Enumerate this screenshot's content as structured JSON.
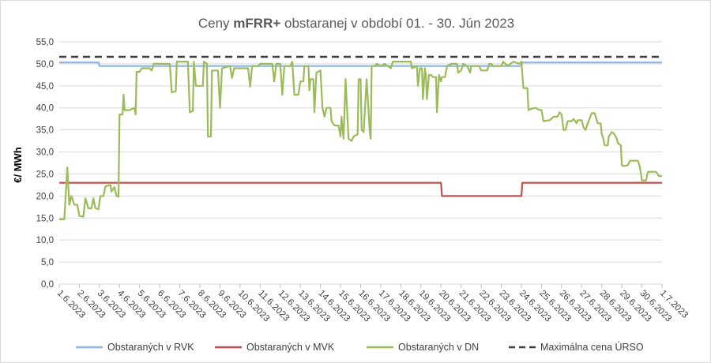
{
  "chart_data": {
    "type": "line",
    "title_parts": [
      "Ceny ",
      "mFRR+",
      " obstaranej v období 01. - 30. Jún 2023"
    ],
    "xlabel": "",
    "ylabel": "€/ MWh",
    "ylim": [
      0,
      55
    ],
    "yticks": [
      "0,0",
      "5,0",
      "10,0",
      "15,0",
      "20,0",
      "25,0",
      "30,0",
      "35,0",
      "40,0",
      "45,0",
      "50,0",
      "55,0"
    ],
    "x_categories": [
      "1.6.2023",
      "2.6.2023",
      "3.6.2023",
      "4.6.2023",
      "5.6.2023",
      "6.6.2023",
      "7.6.2023",
      "8.6.2023",
      "9.6.2023",
      "10.6.2023",
      "11.6.2023",
      "12.6.2023",
      "13.6.2023",
      "14.6.2023",
      "15.6.2023",
      "16.6.2023",
      "17.6.2023",
      "18.6.2023",
      "19.6.2023",
      "20.6.2023",
      "21.6.2023",
      "22.6.2023",
      "23.6.2023",
      "24.6.2023",
      "25.6.2023",
      "26.6.2023",
      "27.6.2023",
      "28.6.2023",
      "29.6.2023",
      "30.6.2023",
      "1.7.2023"
    ],
    "grid": "horizontal",
    "legend_position": "bottom",
    "series": [
      {
        "name": "Obstaraných v RVK",
        "color": "#8eb4e3",
        "points": [
          [
            0,
            50.3
          ],
          [
            1.95,
            50.3
          ],
          [
            2.0,
            49.5
          ],
          [
            23.0,
            49.5
          ],
          [
            23.05,
            50.3
          ],
          [
            30,
            50.3
          ]
        ]
      },
      {
        "name": "Obstaraných v MVK",
        "color": "#c0504d",
        "points": [
          [
            0,
            23.0
          ],
          [
            19.0,
            23.0
          ],
          [
            19.05,
            20.0
          ],
          [
            23.0,
            20.0
          ],
          [
            23.05,
            23.0
          ],
          [
            30,
            23.0
          ]
        ]
      },
      {
        "name": "Obstaraných v DN",
        "color": "#9bbb59",
        "points": [
          [
            0,
            14.7
          ],
          [
            0.25,
            14.7
          ],
          [
            0.3,
            18.5
          ],
          [
            0.4,
            26.5
          ],
          [
            0.5,
            18.0
          ],
          [
            0.6,
            20.0
          ],
          [
            0.75,
            18.0
          ],
          [
            0.9,
            18.0
          ],
          [
            1.0,
            15.5
          ],
          [
            1.2,
            15.3
          ],
          [
            1.3,
            19.5
          ],
          [
            1.45,
            17.2
          ],
          [
            1.6,
            17.2
          ],
          [
            1.7,
            19.5
          ],
          [
            1.8,
            17.2
          ],
          [
            1.95,
            17.0
          ],
          [
            2.05,
            20.0
          ],
          [
            2.2,
            20.0
          ],
          [
            2.3,
            22.2
          ],
          [
            2.55,
            22.5
          ],
          [
            2.6,
            21.0
          ],
          [
            2.75,
            22.0
          ],
          [
            2.85,
            20.0
          ],
          [
            2.95,
            19.8
          ],
          [
            3.0,
            38.5
          ],
          [
            3.15,
            38.5
          ],
          [
            3.2,
            43.0
          ],
          [
            3.25,
            39.5
          ],
          [
            3.5,
            39.5
          ],
          [
            3.75,
            40.0
          ],
          [
            3.8,
            38.5
          ],
          [
            3.85,
            48.2
          ],
          [
            4.0,
            48.2
          ],
          [
            4.1,
            49.0
          ],
          [
            4.5,
            49.0
          ],
          [
            4.6,
            48.5
          ],
          [
            4.7,
            50.0
          ],
          [
            5.5,
            50.0
          ],
          [
            5.6,
            43.5
          ],
          [
            5.8,
            43.8
          ],
          [
            5.85,
            50.5
          ],
          [
            6.4,
            50.5
          ],
          [
            6.5,
            39.0
          ],
          [
            6.65,
            39.3
          ],
          [
            6.7,
            50.5
          ],
          [
            6.8,
            45.0
          ],
          [
            7.15,
            45.0
          ],
          [
            7.2,
            50.5
          ],
          [
            7.35,
            50.0
          ],
          [
            7.4,
            33.5
          ],
          [
            7.55,
            33.5
          ],
          [
            7.6,
            48.5
          ],
          [
            7.9,
            48.5
          ],
          [
            8.0,
            40.0
          ],
          [
            8.1,
            49.0
          ],
          [
            8.5,
            49.5
          ],
          [
            8.6,
            46.8
          ],
          [
            8.7,
            49.0
          ],
          [
            9.4,
            49.0
          ],
          [
            9.5,
            44.8
          ],
          [
            9.6,
            49.5
          ],
          [
            9.9,
            49.5
          ],
          [
            10.0,
            50.0
          ],
          [
            10.6,
            50.0
          ],
          [
            10.7,
            46.0
          ],
          [
            10.8,
            50.0
          ],
          [
            11.0,
            50.0
          ],
          [
            11.1,
            43.0
          ],
          [
            11.2,
            49.5
          ],
          [
            11.5,
            49.5
          ],
          [
            11.6,
            50.5
          ],
          [
            11.7,
            43.0
          ],
          [
            11.9,
            43.0
          ],
          [
            12.0,
            46.0
          ],
          [
            12.15,
            46.0
          ],
          [
            12.2,
            49.5
          ],
          [
            12.4,
            49.5
          ],
          [
            12.45,
            44.0
          ],
          [
            12.5,
            46.5
          ],
          [
            12.65,
            46.5
          ],
          [
            12.7,
            39.0
          ],
          [
            12.8,
            48.0
          ],
          [
            13.0,
            48.5
          ],
          [
            13.1,
            40.0
          ],
          [
            13.2,
            38.0
          ],
          [
            13.3,
            40.0
          ],
          [
            13.5,
            40.0
          ],
          [
            13.55,
            37.0
          ],
          [
            13.7,
            36.0
          ],
          [
            13.9,
            36.0
          ],
          [
            14.0,
            33.5
          ],
          [
            14.05,
            38.0
          ],
          [
            14.15,
            33.0
          ],
          [
            14.25,
            46.5
          ],
          [
            14.4,
            33.0
          ],
          [
            14.55,
            32.5
          ],
          [
            14.65,
            33.5
          ],
          [
            14.85,
            34.0
          ],
          [
            14.9,
            46.5
          ],
          [
            15.0,
            46.5
          ],
          [
            15.05,
            35.0
          ],
          [
            15.15,
            34.5
          ],
          [
            15.3,
            46.5
          ],
          [
            15.45,
            35.0
          ],
          [
            15.5,
            33.0
          ],
          [
            15.55,
            49.5
          ],
          [
            15.7,
            49.5
          ],
          [
            15.8,
            50.0
          ],
          [
            16.0,
            49.5
          ],
          [
            16.2,
            50.0
          ],
          [
            16.5,
            49.0
          ],
          [
            16.6,
            50.5
          ],
          [
            17.5,
            50.5
          ],
          [
            17.55,
            49.0
          ],
          [
            17.8,
            49.5
          ],
          [
            17.85,
            45.0
          ],
          [
            17.95,
            49.0
          ],
          [
            18.05,
            49.0
          ],
          [
            18.1,
            42.0
          ],
          [
            18.2,
            49.0
          ],
          [
            18.25,
            47.5
          ],
          [
            18.3,
            42.0
          ],
          [
            18.4,
            47.5
          ],
          [
            18.5,
            47.5
          ],
          [
            18.6,
            47.0
          ],
          [
            18.75,
            47.0
          ],
          [
            18.8,
            39.0
          ],
          [
            18.9,
            47.5
          ],
          [
            19.0,
            46.0
          ],
          [
            19.05,
            47.0
          ],
          [
            19.2,
            47.0
          ],
          [
            19.3,
            49.5
          ],
          [
            19.5,
            50.0
          ],
          [
            19.8,
            50.0
          ],
          [
            19.85,
            48.0
          ],
          [
            20.0,
            48.5
          ],
          [
            20.1,
            50.0
          ],
          [
            20.3,
            49.5
          ],
          [
            20.45,
            48.0
          ],
          [
            20.5,
            49.5
          ],
          [
            20.9,
            49.5
          ],
          [
            21.0,
            48.5
          ],
          [
            21.3,
            48.5
          ],
          [
            21.4,
            50.0
          ],
          [
            21.5,
            50.0
          ],
          [
            21.6,
            49.5
          ],
          [
            22.0,
            49.5
          ],
          [
            22.1,
            50.5
          ],
          [
            22.3,
            49.5
          ],
          [
            22.6,
            50.5
          ],
          [
            22.9,
            50.0
          ],
          [
            23.0,
            50.5
          ],
          [
            23.1,
            44.5
          ],
          [
            23.3,
            44.5
          ],
          [
            23.35,
            39.5
          ],
          [
            23.5,
            39.8
          ],
          [
            23.7,
            40.0
          ],
          [
            23.9,
            39.5
          ],
          [
            24.0,
            39.5
          ],
          [
            24.1,
            37.0
          ],
          [
            24.4,
            37.2
          ],
          [
            24.6,
            38.0
          ],
          [
            24.8,
            38.0
          ],
          [
            24.9,
            39.0
          ],
          [
            25.0,
            38.5
          ],
          [
            25.1,
            35.0
          ],
          [
            25.2,
            35.0
          ],
          [
            25.3,
            37.0
          ],
          [
            25.5,
            37.0
          ],
          [
            25.6,
            37.5
          ],
          [
            25.75,
            36.5
          ],
          [
            25.8,
            37.2
          ],
          [
            26.0,
            37.2
          ],
          [
            26.1,
            35.5
          ],
          [
            26.2,
            35.0
          ],
          [
            26.3,
            36.5
          ],
          [
            26.5,
            38.8
          ],
          [
            26.65,
            38.8
          ],
          [
            26.8,
            36.5
          ],
          [
            26.95,
            36.5
          ],
          [
            27.0,
            34.0
          ],
          [
            27.05,
            33.5
          ],
          [
            27.15,
            31.5
          ],
          [
            27.3,
            31.5
          ],
          [
            27.35,
            33.5
          ],
          [
            27.5,
            34.5
          ],
          [
            27.6,
            34.2
          ],
          [
            27.75,
            33.0
          ],
          [
            27.8,
            32.0
          ],
          [
            27.95,
            31.5
          ],
          [
            28.0,
            27.0
          ],
          [
            28.1,
            26.8
          ],
          [
            28.3,
            27.0
          ],
          [
            28.4,
            28.0
          ],
          [
            28.6,
            28.0
          ],
          [
            28.8,
            28.0
          ],
          [
            28.9,
            26.5
          ],
          [
            29.0,
            23.5
          ],
          [
            29.2,
            23.5
          ],
          [
            29.3,
            25.5
          ],
          [
            29.7,
            25.5
          ],
          [
            29.85,
            24.5
          ],
          [
            30,
            24.5
          ]
        ]
      },
      {
        "name": "Maximálna cena ÚRSO",
        "color": "#404040",
        "dashed": true,
        "points": [
          [
            0,
            51.6
          ],
          [
            30,
            51.6
          ]
        ]
      }
    ]
  }
}
